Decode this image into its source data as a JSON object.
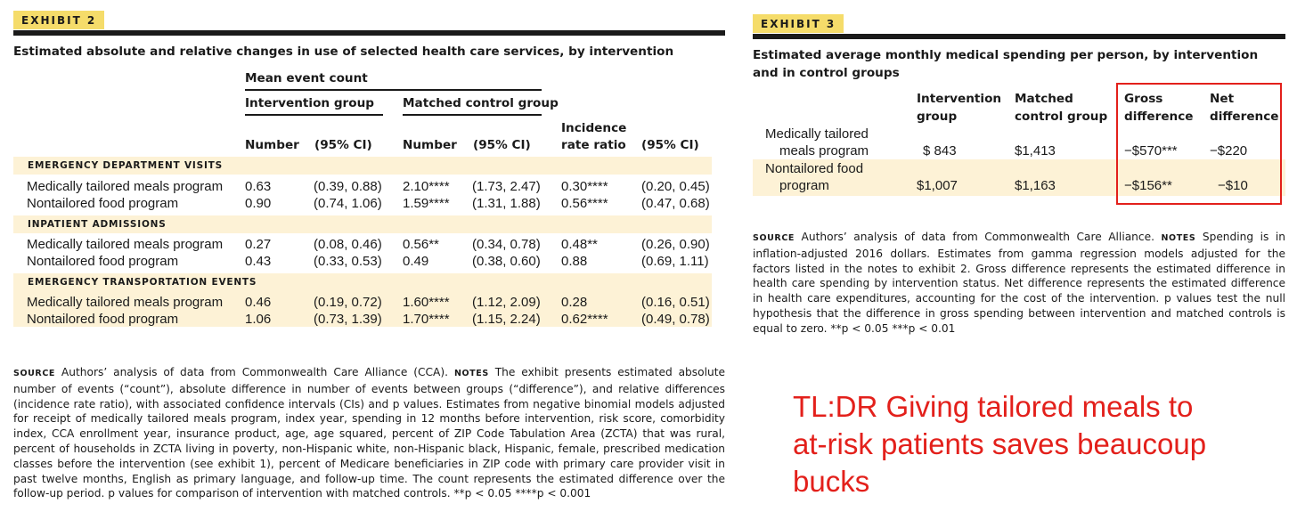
{
  "exhibit2": {
    "tag": "EXHIBIT 2",
    "title": "Estimated absolute and relative changes in use of selected health care services, by intervention",
    "header": {
      "mean_event_count": "Mean event count",
      "intervention_group": "Intervention group",
      "matched_control_group": "Matched control group",
      "number": "Number",
      "ci": "(95% CI)",
      "irr_line1": "Incidence",
      "irr_line2": "rate ratio"
    },
    "sections": [
      {
        "label": "EMERGENCY DEPARTMENT VISITS",
        "rows": [
          {
            "program": "Medically tailored meals program",
            "int_num": "0.63",
            "int_ci": "(0.39, 0.88)",
            "ctl_num": "2.10****",
            "ctl_ci": "(1.73, 2.47)",
            "irr": "0.30****",
            "irr_ci": "(0.20, 0.45)"
          },
          {
            "program": "Nontailored food program",
            "int_num": "0.90",
            "int_ci": "(0.74, 1.06)",
            "ctl_num": "1.59****",
            "ctl_ci": "(1.31, 1.88)",
            "irr": "0.56****",
            "irr_ci": "(0.47, 0.68)"
          }
        ]
      },
      {
        "label": "INPATIENT ADMISSIONS",
        "rows": [
          {
            "program": "Medically tailored meals program",
            "int_num": "0.27",
            "int_ci": "(0.08, 0.46)",
            "ctl_num": "0.56**",
            "ctl_ci": "(0.34, 0.78)",
            "irr": "0.48**",
            "irr_ci": "(0.26, 0.90)"
          },
          {
            "program": "Nontailored food program",
            "int_num": "0.43",
            "int_ci": "(0.33, 0.53)",
            "ctl_num": "0.49",
            "ctl_ci": "(0.38, 0.60)",
            "irr": "0.88",
            "irr_ci": "(0.69, 1.11)"
          }
        ]
      },
      {
        "label": "EMERGENCY TRANSPORTATION EVENTS",
        "rows": [
          {
            "program": "Medically tailored meals program",
            "int_num": "0.46",
            "int_ci": "(0.19, 0.72)",
            "ctl_num": "1.60****",
            "ctl_ci": "(1.12, 2.09)",
            "irr": "0.28",
            "irr_ci": "(0.16, 0.51)"
          },
          {
            "program": "Nontailored food program",
            "int_num": "1.06",
            "int_ci": "(0.73, 1.39)",
            "ctl_num": "1.70****",
            "ctl_ci": "(1.15, 2.24)",
            "irr": "0.62****",
            "irr_ci": "(0.49, 0.78)"
          }
        ]
      }
    ],
    "source_keyword": "SOURCE",
    "source_text": " Authors’ analysis of data from Commonwealth Care Alliance (CCA). ",
    "notes_keyword": "NOTES",
    "notes_text": " The exhibit presents estimated absolute number of events (“count”), absolute difference in number of events between groups (“difference”), and relative differences (incidence rate ratio), with associated confidence intervals (CIs) and p values. Estimates from negative binomial models adjusted for receipt of medically tailored meals program, index year, spending in 12 months before intervention, risk score, comorbidity index, CCA enrollment year, insurance product, age, age squared, percent of ZIP Code Tabulation Area (ZCTA) that was rural, percent of households in ZCTA living in poverty, non-Hispanic white, non-Hispanic black, Hispanic, female, prescribed medication classes before the intervention (see exhibit 1), percent of Medicare beneficiaries in ZIP code with primary care provider visit in past twelve months, English as primary language, and follow-up time. The count represents the estimated difference over the follow-up period. p values for comparison of intervention with matched controls. **p < 0.05 ****p < 0.001"
  },
  "exhibit3": {
    "tag": "EXHIBIT 3",
    "title": "Estimated average monthly medical spending per person, by intervention and in control groups",
    "header": {
      "intervention_line1": "Intervention",
      "intervention_line2": "group",
      "matched_line1": "Matched",
      "matched_line2": "control group",
      "gross_line1": "Gross",
      "gross_line2": "difference",
      "net_line1": "Net",
      "net_line2": "difference"
    },
    "rows": [
      {
        "program_line1": "Medically tailored",
        "program_line2": "meals program",
        "intervention": "$ 843",
        "matched": "$1,413",
        "gross": "−$570***",
        "net": "−$220"
      },
      {
        "program_line1": "Nontailored food",
        "program_line2": "program",
        "intervention": "$1,007",
        "matched": "$1,163",
        "gross": "−$156**",
        "net": "−$10"
      }
    ],
    "source_keyword": "SOURCE",
    "source_text": " Authors’ analysis of data from Commonwealth Care Alliance. ",
    "notes_keyword": "NOTES",
    "notes_text": " Spending is in inflation-adjusted 2016 dollars. Estimates from gamma regression models adjusted for the factors listed in the notes to exhibit 2. Gross difference represents the estimated difference in health care spending by intervention status. Net difference represents the estimated difference in health care expenditures, accounting for the cost of the intervention. p values test the null hypothesis that the difference in gross spending between intervention and matched controls is equal to zero. **p < 0.05 ***p < 0.01"
  },
  "tldr": {
    "line1": "TL:DR Giving tailored meals to",
    "line2": "at-risk patients saves beaucoup",
    "line3": "bucks"
  },
  "colors": {
    "tag_background": "#f5dc6a",
    "band": "#fdf2d6",
    "highlight": "#e3201b"
  }
}
